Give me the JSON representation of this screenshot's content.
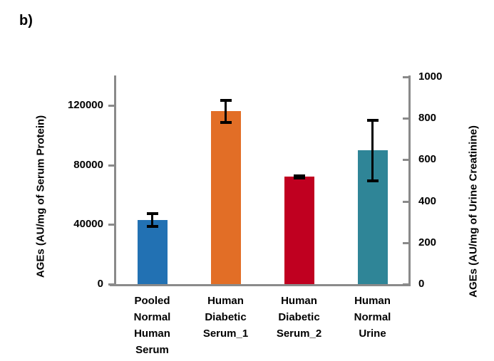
{
  "figure_label": "b)",
  "chart_data": {
    "type": "bar",
    "title": "",
    "categories": [
      "Pooled Normal Human Serum",
      "Human Diabetic Serum_1",
      "Human Diabetic Serum_2",
      "Human Normal Urine"
    ],
    "bars": [
      {
        "category": "Pooled Normal Human Serum",
        "label_lines": [
          "Pooled",
          "Normal",
          "Human",
          "Serum"
        ],
        "axis": "left",
        "value": 43000,
        "error": 4200,
        "color": "#2271b3"
      },
      {
        "category": "Human Diabetic Serum_1",
        "label_lines": [
          "Human",
          "Diabetic",
          "Serum_1"
        ],
        "axis": "left",
        "value": 116000,
        "error": 7300,
        "color": "#e26e26"
      },
      {
        "category": "Human Diabetic Serum_2",
        "label_lines": [
          "Human",
          "Diabetic",
          "Serum_2"
        ],
        "axis": "left",
        "value": 72000,
        "error": 700,
        "color": "#c00020"
      },
      {
        "category": "Human Normal Urine",
        "label_lines": [
          "Human",
          "Normal",
          "Urine"
        ],
        "axis": "right",
        "value": 645,
        "error": 145,
        "color": "#2f8597"
      }
    ],
    "left_axis": {
      "label": "AGEs (AU/mg of Serum Protein)",
      "ticks": [
        0,
        40000,
        80000,
        120000
      ],
      "range": [
        0,
        140000
      ]
    },
    "right_axis": {
      "label": "AGEs (AU/mg of Urine Creatinine)",
      "ticks": [
        0,
        200,
        400,
        600,
        800,
        1000
      ],
      "range": [
        0,
        1000
      ]
    },
    "error_bar_color": "#000000",
    "grid": false,
    "legend": false
  },
  "colors": {
    "axis_line": "#8a8a8a",
    "text": "#000000",
    "background": "#ffffff"
  }
}
